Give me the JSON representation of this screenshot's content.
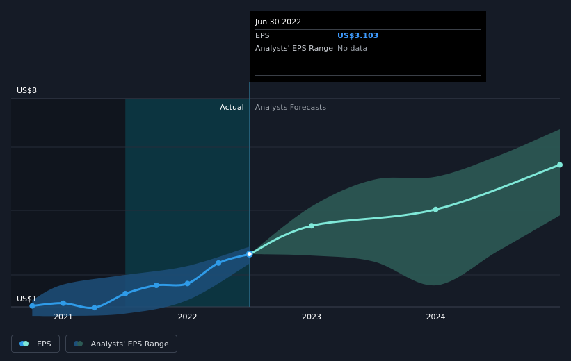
{
  "tooltip": {
    "date": "Jun 30 2022",
    "eps_label": "EPS",
    "eps_value": "US$3.103",
    "range_label": "Analysts' EPS Range",
    "range_value": "No data"
  },
  "legend": {
    "eps_label": "EPS",
    "range_label": "Analysts' EPS Range"
  },
  "colors": {
    "background": "#151b26",
    "eps_actual": "#2f9be8",
    "eps_forecast": "#7fe8d8",
    "range_actual": "#1d4f7a",
    "range_forecast": "#2c5a55",
    "actual_region": "#0c3440",
    "past_region": "#10151e"
  },
  "chart_data": {
    "type": "line",
    "title": "",
    "xlabel": "",
    "ylabel": "",
    "y_tick_labels": [
      "US$8",
      "US$1"
    ],
    "ylim": [
      1,
      8
    ],
    "x_ticks": [
      {
        "label": "2021",
        "x": 2021.0
      },
      {
        "label": "2022",
        "x": 2022.0
      },
      {
        "label": "2023",
        "x": 2023.0
      },
      {
        "label": "2024",
        "x": 2024.0
      }
    ],
    "xlim": [
      2020.58,
      2025.0
    ],
    "grid": true,
    "divider_x": 2022.5,
    "actual_region_start": 2021.5,
    "actual_label": "Actual",
    "forecast_label": "Analysts Forecasts",
    "series": [
      {
        "name": "EPS",
        "x": [
          2020.75,
          2021.0,
          2021.25,
          2021.5,
          2021.75,
          2022.0,
          2022.25,
          2022.5
        ],
        "values": [
          1.36,
          1.45,
          1.3,
          1.77,
          2.05,
          2.11,
          2.8,
          3.1
        ]
      },
      {
        "name": "EPS",
        "x": [
          2022.5,
          2023.0,
          2024.0,
          2025.0
        ],
        "values": [
          3.1,
          4.05,
          4.6,
          6.1
        ]
      }
    ],
    "range": [
      {
        "name": "Analysts' EPS Range",
        "x": [
          2020.75,
          2021.0,
          2021.5,
          2022.0,
          2022.5
        ],
        "low": [
          1.02,
          1.02,
          1.1,
          1.55,
          2.78
        ],
        "high": [
          1.55,
          2.08,
          2.4,
          2.7,
          3.35
        ]
      },
      {
        "name": "Analysts' EPS Range",
        "x": [
          2022.5,
          2023.0,
          2023.5,
          2024.0,
          2024.5,
          2025.0
        ],
        "low": [
          3.1,
          3.05,
          2.85,
          2.05,
          3.2,
          4.4
        ],
        "high": [
          3.1,
          4.7,
          5.6,
          5.7,
          6.4,
          7.3
        ]
      }
    ]
  }
}
